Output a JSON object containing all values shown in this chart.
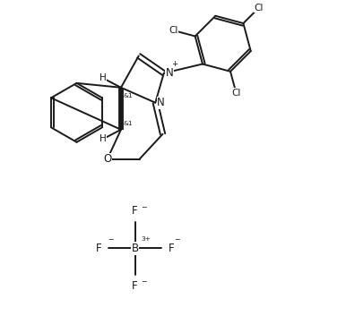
{
  "bg_color": "#ffffff",
  "line_color": "#1a1a1a",
  "line_width": 1.4,
  "font_size": 7.5,
  "figsize": [
    3.96,
    3.53
  ],
  "dpi": 100,
  "xlim": [
    0,
    8.5
  ],
  "ylim": [
    0,
    8.5
  ]
}
